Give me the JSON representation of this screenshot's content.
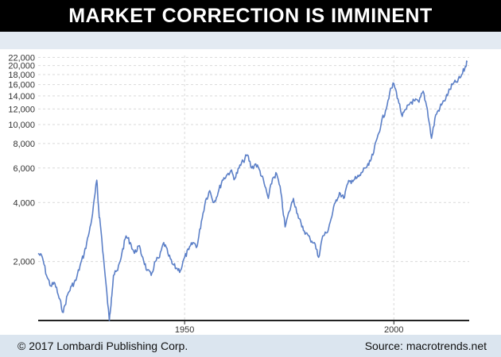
{
  "header": {
    "title": "MARKET CORRECTION IS IMMINENT"
  },
  "footer": {
    "copyright": "© 2017 Lombardi Publishing Corp.",
    "source": "Source: macrotrends.net"
  },
  "colors": {
    "line": "#5b7fc7",
    "grid": "#d9d9d9",
    "axis": "#222222",
    "title_bg": "#000000"
  },
  "chart_data": {
    "type": "line",
    "title": "MARKET CORRECTION IS IMMINENT",
    "xlabel": "",
    "ylabel": "",
    "y_scale": "log",
    "xlim": [
      1915,
      2018
    ],
    "ylim": [
      1000,
      22500
    ],
    "grid": true,
    "y_ticks": [
      2000,
      4000,
      6000,
      8000,
      10000,
      12000,
      14000,
      16000,
      18000,
      20000,
      22000
    ],
    "y_tick_labels": [
      "2,000",
      "4,000",
      "6,000",
      "8,000",
      "10,000",
      "12,000",
      "14,000",
      "16,000",
      "18,000",
      "20,000",
      "22,000"
    ],
    "x_ticks": [
      1950,
      2000
    ],
    "x_tick_labels": [
      "1950",
      "2000"
    ],
    "series": [
      {
        "x": [
          1915,
          1916,
          1917,
          1918,
          1919,
          1920,
          1921,
          1922,
          1923,
          1924,
          1925,
          1926,
          1927,
          1928,
          1929,
          1929.5,
          1930,
          1931,
          1932,
          1932.5,
          1933,
          1934,
          1935,
          1936,
          1937,
          1938,
          1939,
          1940,
          1941,
          1942,
          1943,
          1944,
          1945,
          1946,
          1947,
          1948,
          1949,
          1950,
          1951,
          1952,
          1953,
          1954,
          1955,
          1956,
          1957,
          1958,
          1959,
          1960,
          1961,
          1962,
          1963,
          1964,
          1965,
          1966,
          1967,
          1968,
          1969,
          1970,
          1971,
          1972,
          1973,
          1974,
          1975,
          1976,
          1977,
          1978,
          1979,
          1980,
          1981,
          1982,
          1983,
          1984,
          1985,
          1986,
          1987,
          1988,
          1989,
          1990,
          1991,
          1992,
          1993,
          1994,
          1995,
          1996,
          1997,
          1998,
          1999,
          2000,
          2001,
          2002,
          2003,
          2004,
          2005,
          2006,
          2007,
          2008,
          2009,
          2010,
          2011,
          2012,
          2013,
          2014,
          2015,
          2016,
          2017,
          2017.5
        ],
        "values": [
          2200,
          2100,
          1700,
          1500,
          1550,
          1300,
          1100,
          1350,
          1500,
          1600,
          1900,
          2200,
          2700,
          3500,
          5200,
          3600,
          2900,
          1700,
          1000,
          1300,
          1700,
          1800,
          2200,
          2700,
          2500,
          2200,
          2400,
          2100,
          1800,
          1700,
          2000,
          2100,
          2500,
          2200,
          1950,
          1850,
          1800,
          2100,
          2300,
          2500,
          2400,
          3200,
          4100,
          4600,
          4000,
          4500,
          5200,
          5500,
          5800,
          5300,
          6000,
          6500,
          7000,
          6000,
          6300,
          5800,
          5000,
          4200,
          5300,
          5600,
          4500,
          3000,
          3600,
          4200,
          3500,
          3000,
          2800,
          2600,
          2500,
          2100,
          2700,
          2800,
          3300,
          4000,
          4500,
          4200,
          5000,
          5200,
          5300,
          5500,
          6000,
          6200,
          7000,
          8500,
          10200,
          11800,
          14500,
          16200,
          13500,
          11000,
          12000,
          13000,
          13200,
          13000,
          14800,
          12000,
          8500,
          11200,
          12200,
          13200,
          14500,
          16000,
          16500,
          17500,
          19500,
          20800
        ]
      }
    ]
  }
}
